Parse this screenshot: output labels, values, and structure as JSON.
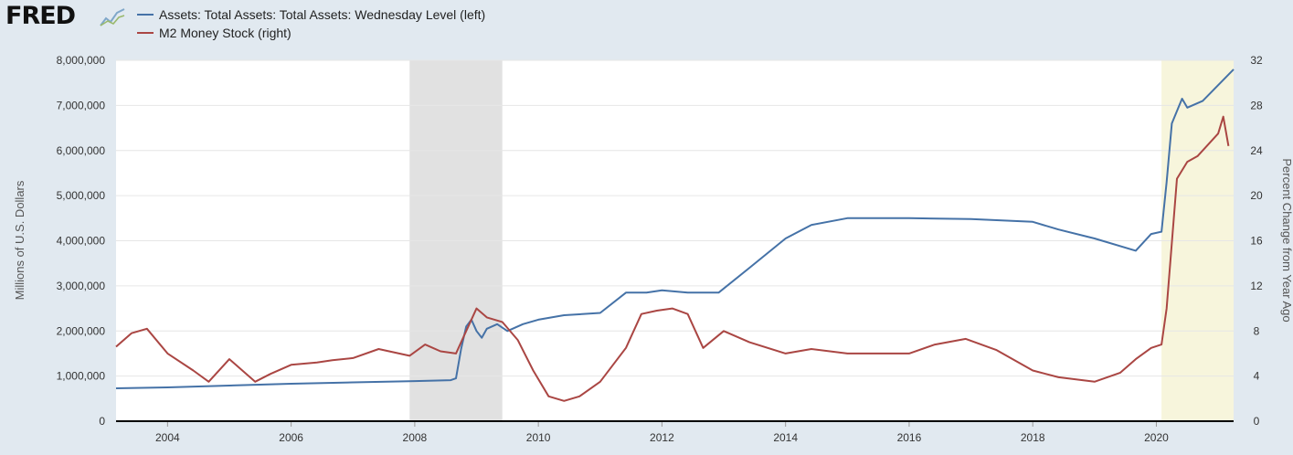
{
  "header": {
    "logo_text": "FRED",
    "logo_icon": "line-chart-icon"
  },
  "chart_data": {
    "type": "line",
    "x_range": [
      "2003-03-01",
      "2021-04-01"
    ],
    "xticks": [
      "2004",
      "2006",
      "2008",
      "2010",
      "2012",
      "2014",
      "2016",
      "2018",
      "2020"
    ],
    "left_axis": {
      "label": "Millions of U.S. Dollars",
      "range": [
        0,
        8000000
      ],
      "ticks": [
        "0",
        "1,000,000",
        "2,000,000",
        "3,000,000",
        "4,000,000",
        "5,000,000",
        "6,000,000",
        "7,000,000",
        "8,000,000"
      ]
    },
    "right_axis": {
      "label": "Percent Change from Year Ago",
      "range": [
        0,
        32
      ],
      "ticks": [
        "0",
        "4",
        "8",
        "12",
        "16",
        "20",
        "24",
        "28",
        "32"
      ]
    },
    "recessions": [
      [
        "2007-12-01",
        "2009-06-01"
      ],
      [
        "2020-02-01",
        "2021-04-01"
      ]
    ],
    "recession_colors": [
      "#e1e1e1",
      "#f7f5dc"
    ],
    "grid": true,
    "legend_position": "top-left",
    "series": [
      {
        "name": "Assets: Total Assets: Total Assets: Wednesday Level (left)",
        "axis": "left",
        "color": "#4572a7",
        "points": [
          [
            "2003-03-01",
            730000
          ],
          [
            "2004-01-01",
            750000
          ],
          [
            "2005-01-01",
            790000
          ],
          [
            "2006-01-01",
            830000
          ],
          [
            "2007-01-01",
            860000
          ],
          [
            "2008-01-01",
            890000
          ],
          [
            "2008-08-01",
            910000
          ],
          [
            "2008-09-01",
            950000
          ],
          [
            "2008-10-01",
            1600000
          ],
          [
            "2008-11-01",
            2100000
          ],
          [
            "2008-12-01",
            2250000
          ],
          [
            "2009-01-01",
            2000000
          ],
          [
            "2009-02-01",
            1850000
          ],
          [
            "2009-03-01",
            2050000
          ],
          [
            "2009-05-01",
            2150000
          ],
          [
            "2009-07-01",
            2000000
          ],
          [
            "2009-10-01",
            2150000
          ],
          [
            "2010-01-01",
            2250000
          ],
          [
            "2010-06-01",
            2350000
          ],
          [
            "2011-01-01",
            2400000
          ],
          [
            "2011-06-01",
            2850000
          ],
          [
            "2011-10-01",
            2850000
          ],
          [
            "2012-01-01",
            2900000
          ],
          [
            "2012-06-01",
            2850000
          ],
          [
            "2012-12-01",
            2850000
          ],
          [
            "2013-06-01",
            3400000
          ],
          [
            "2014-01-01",
            4050000
          ],
          [
            "2014-06-01",
            4350000
          ],
          [
            "2015-01-01",
            4500000
          ],
          [
            "2016-01-01",
            4500000
          ],
          [
            "2017-01-01",
            4480000
          ],
          [
            "2018-01-01",
            4420000
          ],
          [
            "2018-06-01",
            4250000
          ],
          [
            "2019-01-01",
            4050000
          ],
          [
            "2019-09-01",
            3780000
          ],
          [
            "2019-12-01",
            4150000
          ],
          [
            "2020-02-01",
            4200000
          ],
          [
            "2020-03-01",
            5300000
          ],
          [
            "2020-04-01",
            6600000
          ],
          [
            "2020-06-01",
            7150000
          ],
          [
            "2020-07-01",
            6950000
          ],
          [
            "2020-10-01",
            7100000
          ],
          [
            "2021-01-01",
            7450000
          ],
          [
            "2021-04-01",
            7800000
          ]
        ]
      },
      {
        "name": "M2 Money Stock (right)",
        "axis": "right",
        "color": "#aa4643",
        "points": [
          [
            "2003-03-01",
            6.6
          ],
          [
            "2003-06-01",
            7.8
          ],
          [
            "2003-09-01",
            8.2
          ],
          [
            "2004-01-01",
            6.0
          ],
          [
            "2004-06-01",
            4.5
          ],
          [
            "2004-09-01",
            3.5
          ],
          [
            "2005-01-01",
            5.5
          ],
          [
            "2005-06-01",
            3.5
          ],
          [
            "2005-09-01",
            4.2
          ],
          [
            "2006-01-01",
            5.0
          ],
          [
            "2006-06-01",
            5.2
          ],
          [
            "2006-09-01",
            5.4
          ],
          [
            "2007-01-01",
            5.6
          ],
          [
            "2007-06-01",
            6.4
          ],
          [
            "2007-12-01",
            5.8
          ],
          [
            "2008-03-01",
            6.8
          ],
          [
            "2008-06-01",
            6.2
          ],
          [
            "2008-09-01",
            6.0
          ],
          [
            "2008-11-01",
            8.0
          ],
          [
            "2009-01-01",
            10.0
          ],
          [
            "2009-03-01",
            9.2
          ],
          [
            "2009-06-01",
            8.8
          ],
          [
            "2009-09-01",
            7.2
          ],
          [
            "2009-12-01",
            4.5
          ],
          [
            "2010-03-01",
            2.2
          ],
          [
            "2010-06-01",
            1.8
          ],
          [
            "2010-09-01",
            2.2
          ],
          [
            "2011-01-01",
            3.5
          ],
          [
            "2011-06-01",
            6.5
          ],
          [
            "2011-09-01",
            9.5
          ],
          [
            "2011-12-01",
            9.8
          ],
          [
            "2012-03-01",
            10.0
          ],
          [
            "2012-06-01",
            9.5
          ],
          [
            "2012-09-01",
            6.5
          ],
          [
            "2013-01-01",
            8.0
          ],
          [
            "2013-06-01",
            7.0
          ],
          [
            "2014-01-01",
            6.0
          ],
          [
            "2014-06-01",
            6.4
          ],
          [
            "2015-01-01",
            6.0
          ],
          [
            "2015-06-01",
            6.0
          ],
          [
            "2016-01-01",
            6.0
          ],
          [
            "2016-06-01",
            6.8
          ],
          [
            "2016-12-01",
            7.3
          ],
          [
            "2017-06-01",
            6.3
          ],
          [
            "2018-01-01",
            4.5
          ],
          [
            "2018-06-01",
            3.9
          ],
          [
            "2019-01-01",
            3.5
          ],
          [
            "2019-06-01",
            4.3
          ],
          [
            "2019-09-01",
            5.5
          ],
          [
            "2019-12-01",
            6.5
          ],
          [
            "2020-02-01",
            6.8
          ],
          [
            "2020-03-01",
            10.0
          ],
          [
            "2020-05-01",
            21.5
          ],
          [
            "2020-07-01",
            23.0
          ],
          [
            "2020-09-01",
            23.5
          ],
          [
            "2020-11-01",
            24.5
          ],
          [
            "2021-01-01",
            25.5
          ],
          [
            "2021-02-01",
            27.0
          ],
          [
            "2021-03-01",
            24.4
          ]
        ]
      }
    ]
  }
}
